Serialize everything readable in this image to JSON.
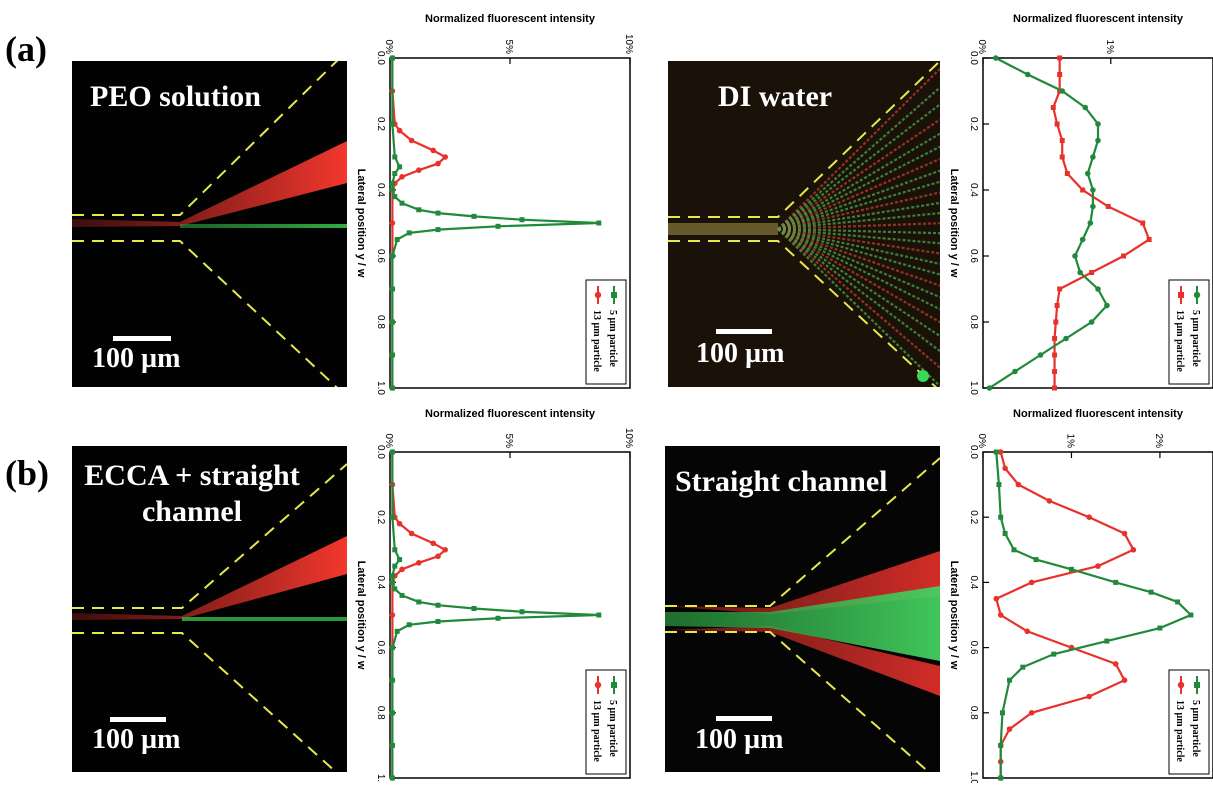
{
  "panels": {
    "a": "(a)",
    "b": "(b)"
  },
  "micrographs": [
    {
      "title": "PEO solution",
      "scale": "100 µm"
    },
    {
      "title": "DI water",
      "scale": "100 µm"
    },
    {
      "title_line1": "ECCA + straight",
      "title_line2": "channel",
      "scale": "100 µm"
    },
    {
      "title": "Straight channel",
      "scale": "100 µm"
    }
  ],
  "colors": {
    "red_series": "#e8312b",
    "green_series": "#21893a",
    "channel_outline": "#e8e84a"
  },
  "chart_data": [
    {
      "type": "line",
      "title": "Normalized fluorescent intensity",
      "xlabel": "Normalized fluorescent intensity",
      "ylabel": "Lateral position y / w",
      "xlim": [
        0,
        10
      ],
      "xticks": [
        "0%",
        "5%",
        "10%"
      ],
      "ylim": [
        0,
        1
      ],
      "yticks": [
        "0.0",
        "0.2",
        "0.4",
        "0.6",
        "0.8",
        "1.0"
      ],
      "legend": "bottom-right",
      "series": [
        {
          "name": "5 µm particle",
          "color": "#21893a",
          "marker": "square",
          "y": [
            0.0,
            0.2,
            0.3,
            0.33,
            0.35,
            0.38,
            0.4,
            0.42,
            0.44,
            0.46,
            0.47,
            0.48,
            0.49,
            0.5,
            0.51,
            0.52,
            0.53,
            0.55,
            0.6,
            0.7,
            0.8,
            0.9,
            1.0
          ],
          "x": [
            0.1,
            0.1,
            0.2,
            0.4,
            0.2,
            0.1,
            0.1,
            0.2,
            0.5,
            1.2,
            2.0,
            3.5,
            5.5,
            8.7,
            4.5,
            2.0,
            0.8,
            0.3,
            0.1,
            0.1,
            0.1,
            0.1,
            0.1
          ]
        },
        {
          "name": "13 µm particle",
          "color": "#e8312b",
          "marker": "circle",
          "y": [
            0.0,
            0.1,
            0.2,
            0.22,
            0.25,
            0.28,
            0.3,
            0.32,
            0.34,
            0.36,
            0.38,
            0.4,
            0.5,
            0.6,
            0.7,
            0.8,
            0.9,
            1.0
          ],
          "x": [
            0.1,
            0.1,
            0.2,
            0.4,
            0.9,
            1.8,
            2.3,
            2.0,
            1.2,
            0.5,
            0.2,
            0.1,
            0.1,
            0.1,
            0.1,
            0.1,
            0.1,
            0.1
          ]
        }
      ]
    },
    {
      "type": "line",
      "title": "Normalized fluorescent intensity",
      "xlabel": "Normalized fluorescent intensity",
      "ylabel": "Lateral position y / w",
      "xlim": [
        0,
        1.8
      ],
      "xticks": [
        "0%",
        "1%"
      ],
      "ylim": [
        0,
        1
      ],
      "yticks": [
        "0.0",
        "0.2",
        "0.4",
        "0.6",
        "0.8",
        "1.0"
      ],
      "legend": "bottom-right",
      "series": [
        {
          "name": "5 µm particle",
          "color": "#21893a",
          "marker": "circle",
          "y": [
            0.0,
            0.05,
            0.1,
            0.15,
            0.2,
            0.25,
            0.3,
            0.35,
            0.4,
            0.45,
            0.5,
            0.55,
            0.6,
            0.65,
            0.7,
            0.75,
            0.8,
            0.85,
            0.9,
            0.95,
            1.0
          ],
          "x": [
            0.1,
            0.35,
            0.62,
            0.8,
            0.9,
            0.9,
            0.86,
            0.82,
            0.86,
            0.86,
            0.84,
            0.78,
            0.72,
            0.76,
            0.9,
            0.97,
            0.85,
            0.65,
            0.45,
            0.25,
            0.05
          ]
        },
        {
          "name": "13 µm particle",
          "color": "#e8312b",
          "marker": "square",
          "y": [
            0.0,
            0.05,
            0.1,
            0.15,
            0.2,
            0.25,
            0.3,
            0.35,
            0.4,
            0.45,
            0.5,
            0.55,
            0.6,
            0.65,
            0.7,
            0.75,
            0.8,
            0.85,
            0.9,
            0.95,
            1.0
          ],
          "x": [
            0.6,
            0.6,
            0.6,
            0.55,
            0.58,
            0.62,
            0.62,
            0.66,
            0.78,
            0.98,
            1.25,
            1.3,
            1.1,
            0.85,
            0.6,
            0.58,
            0.57,
            0.56,
            0.56,
            0.56,
            0.56
          ]
        }
      ]
    },
    {
      "type": "line",
      "title": "Normalized fluorescent intensity",
      "xlabel": "Normalized fluorescent intensity",
      "ylabel": "Lateral position y / w",
      "xlim": [
        0,
        10
      ],
      "xticks": [
        "0%",
        "5%",
        "10%"
      ],
      "ylim": [
        0,
        1
      ],
      "yticks": [
        "0.0",
        "0.2",
        "0.4",
        "0.6",
        "0.8",
        "1."
      ],
      "legend": "bottom-right",
      "series": [
        {
          "name": "5 µm particle",
          "color": "#21893a",
          "marker": "square",
          "y": [
            0.0,
            0.2,
            0.3,
            0.33,
            0.35,
            0.38,
            0.4,
            0.42,
            0.44,
            0.46,
            0.47,
            0.48,
            0.49,
            0.5,
            0.51,
            0.52,
            0.53,
            0.55,
            0.6,
            0.7,
            0.8,
            0.9,
            1.0
          ],
          "x": [
            0.1,
            0.1,
            0.2,
            0.4,
            0.2,
            0.1,
            0.1,
            0.2,
            0.5,
            1.2,
            2.0,
            3.5,
            5.5,
            8.7,
            4.5,
            2.0,
            0.8,
            0.3,
            0.1,
            0.1,
            0.1,
            0.1,
            0.1
          ]
        },
        {
          "name": "13 µm particle",
          "color": "#e8312b",
          "marker": "circle",
          "y": [
            0.0,
            0.1,
            0.2,
            0.22,
            0.25,
            0.28,
            0.3,
            0.32,
            0.34,
            0.36,
            0.38,
            0.4,
            0.5,
            0.6,
            0.7,
            0.8,
            0.9,
            1.0
          ],
          "x": [
            0.1,
            0.1,
            0.2,
            0.4,
            0.9,
            1.8,
            2.3,
            2.0,
            1.2,
            0.5,
            0.2,
            0.1,
            0.1,
            0.1,
            0.1,
            0.1,
            0.1,
            0.1
          ]
        }
      ]
    },
    {
      "type": "line",
      "title": "Normalized fluorescent intensity",
      "xlabel": "Normalized fluorescent intensity",
      "ylabel": "Lateral position y / w",
      "xlim": [
        0,
        2.6
      ],
      "xticks": [
        "0%",
        "1%",
        "2%"
      ],
      "ylim": [
        0,
        1
      ],
      "yticks": [
        "0.0",
        "0.2",
        "0.4",
        "0.6",
        "0.8",
        "1.0"
      ],
      "legend": "bottom-right",
      "series": [
        {
          "name": "5 µm particle",
          "color": "#21893a",
          "marker": "square",
          "y": [
            0.0,
            0.1,
            0.2,
            0.25,
            0.3,
            0.33,
            0.36,
            0.4,
            0.43,
            0.46,
            0.5,
            0.54,
            0.58,
            0.62,
            0.66,
            0.7,
            0.8,
            0.9,
            1.0
          ],
          "x": [
            0.15,
            0.18,
            0.2,
            0.25,
            0.35,
            0.6,
            1.0,
            1.5,
            1.9,
            2.2,
            2.35,
            2.0,
            1.4,
            0.8,
            0.45,
            0.3,
            0.22,
            0.2,
            0.2
          ]
        },
        {
          "name": "13 µm particle",
          "color": "#e8312b",
          "marker": "circle",
          "y": [
            0.0,
            0.05,
            0.1,
            0.15,
            0.2,
            0.25,
            0.3,
            0.35,
            0.4,
            0.45,
            0.5,
            0.55,
            0.6,
            0.65,
            0.7,
            0.75,
            0.8,
            0.85,
            0.9,
            0.95,
            1.0
          ],
          "x": [
            0.2,
            0.25,
            0.4,
            0.75,
            1.2,
            1.6,
            1.7,
            1.3,
            0.55,
            0.15,
            0.2,
            0.5,
            1.0,
            1.5,
            1.6,
            1.2,
            0.55,
            0.3,
            0.2,
            0.2,
            0.2
          ]
        }
      ]
    }
  ]
}
